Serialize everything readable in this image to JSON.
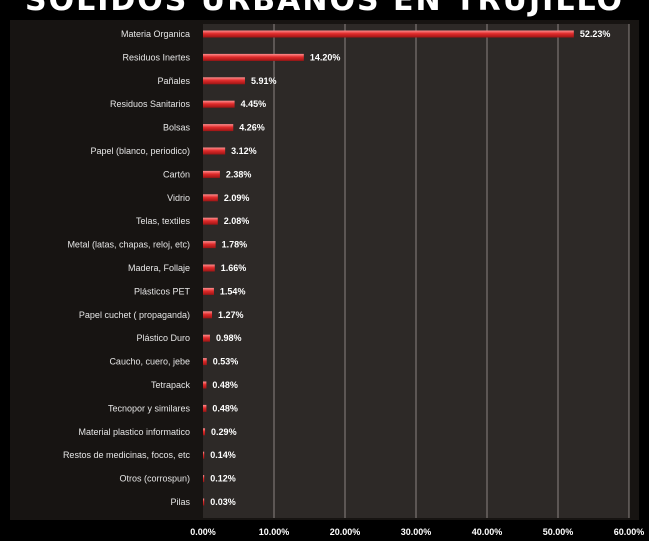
{
  "chart_data": {
    "type": "bar",
    "orientation": "horizontal",
    "title": "SOLIDOS URBANOS EN TRUJILLO",
    "categories": [
      "Materia Organica",
      "Residuos Inertes",
      "Pañales",
      "Residuos Sanitarios",
      "Bolsas",
      "Papel (blanco, periodico)",
      "Cartón",
      "Vidrio",
      "Telas, textiles",
      "Metal (latas, chapas, reloj, etc)",
      "Madera, Follaje",
      "Plásticos PET",
      "Papel cuchet ( propaganda)",
      "Plástico Duro",
      "Caucho, cuero, jebe",
      "Tetrapack",
      "Tecnopor y similares",
      "Material plastico informatico",
      "Restos de medicinas, focos, etc",
      "Otros (corrospun)",
      "Pilas"
    ],
    "values": [
      52.23,
      14.2,
      5.91,
      4.45,
      4.26,
      3.12,
      2.38,
      2.09,
      2.08,
      1.78,
      1.66,
      1.54,
      1.27,
      0.98,
      0.53,
      0.48,
      0.48,
      0.29,
      0.14,
      0.12,
      0.03
    ],
    "value_labels": [
      "52.23%",
      "14.20%",
      "5.91%",
      "4.45%",
      "4.26%",
      "3.12%",
      "2.38%",
      "2.09%",
      "2.08%",
      "1.78%",
      "1.66%",
      "1.54%",
      "1.27%",
      "0.98%",
      "0.53%",
      "0.48%",
      "0.48%",
      "0.29%",
      "0.14%",
      "0.12%",
      "0.03%"
    ],
    "xlim": [
      0,
      60
    ],
    "xticks": [
      0,
      10,
      20,
      30,
      40,
      50,
      60
    ],
    "xtick_labels": [
      "0.00%",
      "10.00%",
      "20.00%",
      "30.00%",
      "40.00%",
      "50.00%",
      "60.00%"
    ],
    "grid": true,
    "legend": "none",
    "colors": {
      "bar": "#e02b2b",
      "bar_highlight": "#ff8f8f",
      "plot_bg": "#2d2927",
      "frame_bg": "#171412",
      "grid": "#8a8480",
      "page_bg": "#000000"
    }
  }
}
